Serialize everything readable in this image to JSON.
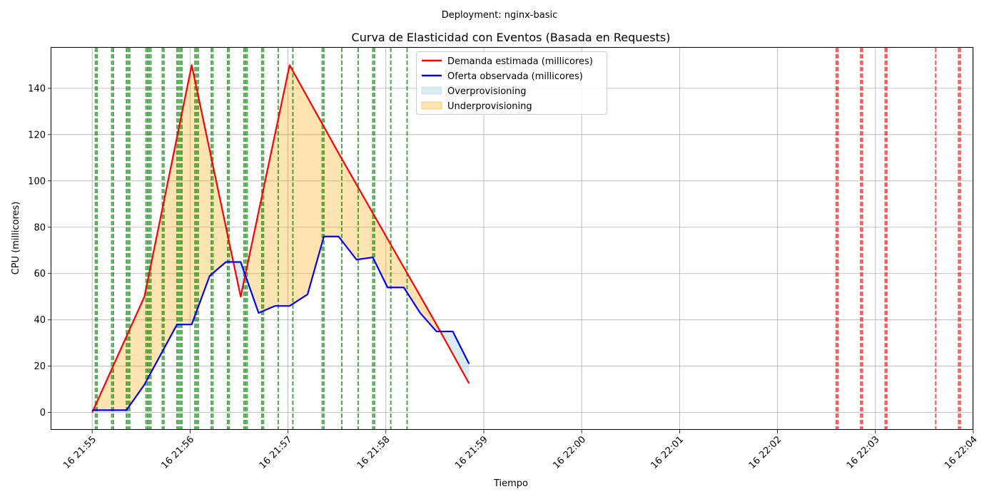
{
  "suptitle": "Deployment: nginx-basic",
  "chart_data": {
    "type": "line",
    "title": "Curva de Elasticidad con Eventos (Basada en Requests)",
    "xlabel": "Tiempo",
    "ylabel": "CPU (millicores)",
    "xlim": [
      "2024-01-16T21:54:35",
      "2024-01-16T22:04:00"
    ],
    "ylim": [
      -7.5,
      157.5
    ],
    "x_ticks": [
      "16 21:55",
      "16 21:56",
      "16 21:57",
      "16 21:58",
      "16 21:59",
      "16 22:00",
      "16 22:01",
      "16 22:02",
      "16 22:03",
      "16 22:04"
    ],
    "y_ticks": [
      0,
      20,
      40,
      60,
      80,
      100,
      120,
      140
    ],
    "grid": true,
    "legend_position": "top-center",
    "legend": [
      {
        "label": "Demanda estimada (millicores)",
        "kind": "line",
        "color": "#ff0000"
      },
      {
        "label": "Oferta observada (millicores)",
        "kind": "line",
        "color": "#0000ff"
      },
      {
        "label": "Overprovisioning",
        "kind": "patch",
        "color": "#add8e6"
      },
      {
        "label": "Underprovisioning",
        "kind": "patch",
        "color": "#ffa500"
      }
    ],
    "series": [
      {
        "name": "Demanda estimada (millicores)",
        "color": "#ff0000",
        "points": [
          [
            "21:55:00",
            0
          ],
          [
            "21:55:32",
            50
          ],
          [
            "21:56:01",
            150
          ],
          [
            "21:56:31",
            50
          ],
          [
            "21:57:01",
            150
          ],
          [
            "21:57:31",
            112
          ],
          [
            "21:58:01",
            75
          ],
          [
            "21:58:31",
            38
          ],
          [
            "21:58:51",
            12.5
          ]
        ]
      },
      {
        "name": "Oferta observada (millicores)",
        "color": "#0000ff",
        "points": [
          [
            "21:55:00",
            1
          ],
          [
            "21:55:10",
            1
          ],
          [
            "21:55:21",
            1
          ],
          [
            "21:55:32",
            12
          ],
          [
            "21:55:42",
            25
          ],
          [
            "21:55:52",
            38
          ],
          [
            "21:56:01",
            38
          ],
          [
            "21:56:12",
            59
          ],
          [
            "21:56:22",
            65
          ],
          [
            "21:56:31",
            65
          ],
          [
            "21:56:42",
            43
          ],
          [
            "21:56:52",
            46
          ],
          [
            "21:57:01",
            46
          ],
          [
            "21:57:12",
            51
          ],
          [
            "21:57:22",
            76
          ],
          [
            "21:57:31",
            76
          ],
          [
            "21:57:42",
            66
          ],
          [
            "21:57:52",
            67
          ],
          [
            "21:58:01",
            54
          ],
          [
            "21:58:11",
            54
          ],
          [
            "21:58:21",
            43
          ],
          [
            "21:58:31",
            35
          ],
          [
            "21:58:41",
            35
          ],
          [
            "21:58:51",
            21
          ]
        ]
      }
    ],
    "event_lines": {
      "scale_up": {
        "color": "#008000",
        "times": [
          "21:55:02",
          "21:55:03",
          "21:55:12",
          "21:55:13",
          "21:55:21",
          "21:55:22",
          "21:55:23",
          "21:55:33",
          "21:55:34",
          "21:55:35",
          "21:55:36",
          "21:55:43",
          "21:55:44",
          "21:55:52",
          "21:55:53",
          "21:55:54",
          "21:55:55",
          "21:56:03",
          "21:56:04",
          "21:56:05",
          "21:56:13",
          "21:56:14",
          "21:56:23",
          "21:56:24",
          "21:56:33",
          "21:56:34",
          "21:56:35",
          "21:56:44",
          "21:56:45",
          "21:56:54",
          "21:57:03",
          "21:57:21",
          "21:57:22",
          "21:57:33",
          "21:57:43",
          "21:57:52",
          "21:57:53",
          "21:58:03",
          "21:58:13"
        ]
      },
      "scale_down": {
        "color": "#ff0000",
        "times": [
          "22:02:36",
          "22:02:37",
          "22:02:51",
          "22:02:52",
          "22:03:06",
          "22:03:07",
          "22:03:37",
          "22:03:51",
          "22:03:52"
        ]
      }
    }
  }
}
